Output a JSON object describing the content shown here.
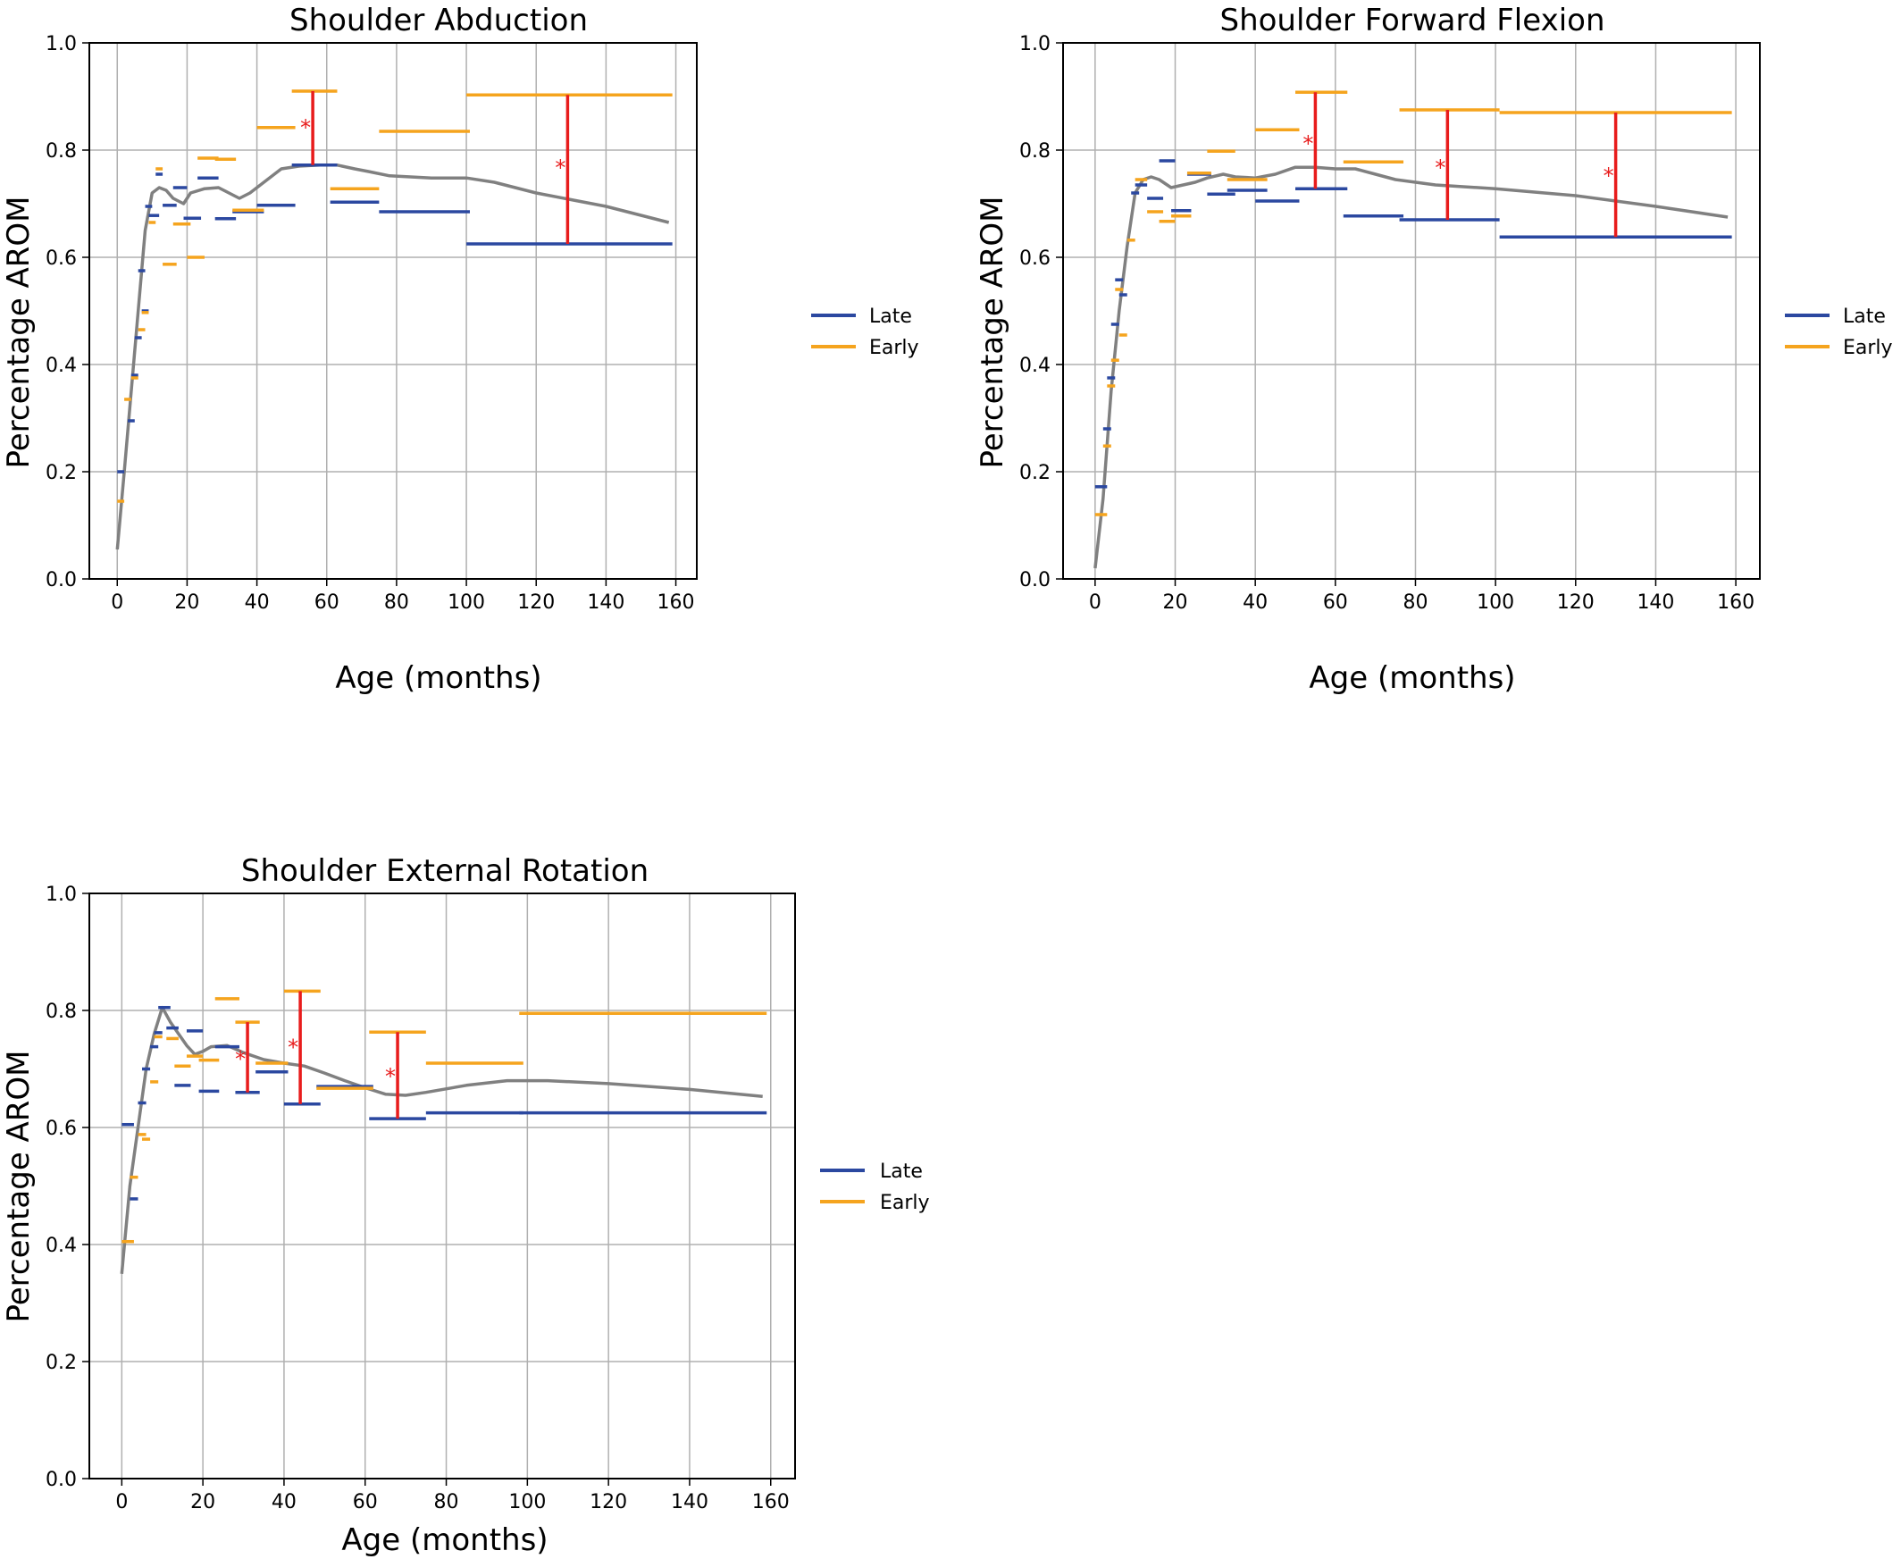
{
  "colors": {
    "late": "#2b48a0",
    "early": "#f5a41e",
    "trend": "#808080",
    "significance": "#e81c1c",
    "grid": "#b0b0b0"
  },
  "legend": {
    "late": "Late",
    "early": "Early"
  },
  "chart_data": [
    {
      "type": "line",
      "title": "Shoulder Abduction",
      "xlabel": "Age (months)",
      "ylabel": "Percentage AROM",
      "xlim": [
        -8,
        166
      ],
      "ylim": [
        0,
        1.0
      ],
      "xticks": [
        0,
        20,
        40,
        60,
        80,
        100,
        120,
        140,
        160
      ],
      "yticks": [
        0.0,
        0.2,
        0.4,
        0.6,
        0.8,
        1.0
      ],
      "grid": true,
      "legend_placement": "right",
      "trend": [
        [
          0,
          0.055
        ],
        [
          2,
          0.2
        ],
        [
          4,
          0.35
        ],
        [
          6,
          0.5
        ],
        [
          8,
          0.65
        ],
        [
          10,
          0.72
        ],
        [
          12,
          0.73
        ],
        [
          14,
          0.725
        ],
        [
          16,
          0.71
        ],
        [
          19,
          0.7
        ],
        [
          21,
          0.72
        ],
        [
          25,
          0.728
        ],
        [
          29,
          0.73
        ],
        [
          32,
          0.72
        ],
        [
          35,
          0.71
        ],
        [
          38,
          0.72
        ],
        [
          42,
          0.74
        ],
        [
          47,
          0.765
        ],
        [
          52,
          0.77
        ],
        [
          58,
          0.772
        ],
        [
          63,
          0.772
        ],
        [
          68,
          0.765
        ],
        [
          72,
          0.76
        ],
        [
          78,
          0.752
        ],
        [
          90,
          0.748
        ],
        [
          100,
          0.748
        ],
        [
          108,
          0.74
        ],
        [
          120,
          0.72
        ],
        [
          140,
          0.695
        ],
        [
          158,
          0.665
        ]
      ],
      "late": [
        [
          0,
          2,
          0.2
        ],
        [
          3,
          5,
          0.295
        ],
        [
          4,
          6,
          0.38
        ],
        [
          5,
          7,
          0.45
        ],
        [
          6,
          8,
          0.575
        ],
        [
          7,
          9,
          0.5
        ],
        [
          8,
          10,
          0.695
        ],
        [
          9,
          12,
          0.678
        ],
        [
          11,
          13,
          0.755
        ],
        [
          13,
          17,
          0.697
        ],
        [
          16,
          20,
          0.73
        ],
        [
          19,
          24,
          0.673
        ],
        [
          23,
          29,
          0.748
        ],
        [
          28,
          34,
          0.672
        ],
        [
          33,
          42,
          0.685
        ],
        [
          40,
          51,
          0.697
        ],
        [
          50,
          63,
          0.772
        ],
        [
          61,
          75,
          0.703
        ],
        [
          75,
          101,
          0.685
        ],
        [
          100,
          159,
          0.625
        ]
      ],
      "early": [
        [
          0,
          2,
          0.145
        ],
        [
          2,
          4,
          0.335
        ],
        [
          4,
          6,
          0.375
        ],
        [
          6,
          8,
          0.465
        ],
        [
          7,
          9,
          0.497
        ],
        [
          9,
          11,
          0.665
        ],
        [
          11,
          13,
          0.765
        ],
        [
          13,
          17,
          0.587
        ],
        [
          16,
          21,
          0.662
        ],
        [
          20,
          25,
          0.6
        ],
        [
          23,
          29,
          0.785
        ],
        [
          28,
          34,
          0.783
        ],
        [
          33,
          42,
          0.688
        ],
        [
          40,
          51,
          0.842
        ],
        [
          50,
          63,
          0.91
        ],
        [
          61,
          75,
          0.728
        ],
        [
          75,
          101,
          0.835
        ],
        [
          100,
          159,
          0.903
        ]
      ],
      "significance": [
        {
          "x": 56,
          "y1": 0.772,
          "y2": 0.91,
          "star_y": 0.845,
          "star": "*"
        },
        {
          "x": 129,
          "y1": 0.625,
          "y2": 0.903,
          "star_y": 0.77,
          "star": "*"
        }
      ]
    },
    {
      "type": "line",
      "title": "Shoulder Forward Flexion",
      "xlabel": "Age (months)",
      "ylabel": "Percentage AROM",
      "xlim": [
        -8,
        166
      ],
      "ylim": [
        0,
        1.0
      ],
      "xticks": [
        0,
        20,
        40,
        60,
        80,
        100,
        120,
        140,
        160
      ],
      "yticks": [
        0.0,
        0.2,
        0.4,
        0.6,
        0.8,
        1.0
      ],
      "grid": true,
      "legend_placement": "right",
      "trend": [
        [
          0,
          0.02
        ],
        [
          2,
          0.15
        ],
        [
          4,
          0.35
        ],
        [
          6,
          0.5
        ],
        [
          8,
          0.62
        ],
        [
          10,
          0.72
        ],
        [
          12,
          0.745
        ],
        [
          14,
          0.75
        ],
        [
          16,
          0.745
        ],
        [
          19,
          0.73
        ],
        [
          22,
          0.735
        ],
        [
          25,
          0.74
        ],
        [
          28,
          0.748
        ],
        [
          32,
          0.755
        ],
        [
          35,
          0.75
        ],
        [
          40,
          0.748
        ],
        [
          45,
          0.755
        ],
        [
          50,
          0.768
        ],
        [
          55,
          0.768
        ],
        [
          60,
          0.765
        ],
        [
          65,
          0.765
        ],
        [
          70,
          0.755
        ],
        [
          75,
          0.745
        ],
        [
          85,
          0.735
        ],
        [
          100,
          0.728
        ],
        [
          120,
          0.715
        ],
        [
          140,
          0.695
        ],
        [
          158,
          0.675
        ]
      ],
      "late": [
        [
          0,
          3,
          0.172
        ],
        [
          2,
          4,
          0.28
        ],
        [
          3,
          5,
          0.375
        ],
        [
          4,
          6,
          0.475
        ],
        [
          5,
          7,
          0.558
        ],
        [
          6,
          8,
          0.53
        ],
        [
          9,
          11,
          0.72
        ],
        [
          10,
          13,
          0.735
        ],
        [
          13,
          17,
          0.71
        ],
        [
          16,
          20,
          0.78
        ],
        [
          19,
          24,
          0.687
        ],
        [
          23,
          29,
          0.755
        ],
        [
          28,
          35,
          0.718
        ],
        [
          33,
          43,
          0.725
        ],
        [
          40,
          51,
          0.705
        ],
        [
          50,
          63,
          0.728
        ],
        [
          62,
          77,
          0.677
        ],
        [
          76,
          101,
          0.67
        ],
        [
          101,
          159,
          0.638
        ]
      ],
      "early": [
        [
          0,
          3,
          0.12
        ],
        [
          2,
          4,
          0.248
        ],
        [
          3,
          5,
          0.36
        ],
        [
          4,
          6,
          0.408
        ],
        [
          5,
          7,
          0.54
        ],
        [
          6,
          8,
          0.455
        ],
        [
          8,
          10,
          0.632
        ],
        [
          10,
          13,
          0.745
        ],
        [
          13,
          17,
          0.685
        ],
        [
          16,
          20,
          0.667
        ],
        [
          19,
          24,
          0.677
        ],
        [
          23,
          29,
          0.757
        ],
        [
          28,
          35,
          0.798
        ],
        [
          33,
          43,
          0.745
        ],
        [
          40,
          51,
          0.838
        ],
        [
          50,
          63,
          0.908
        ],
        [
          62,
          77,
          0.778
        ],
        [
          76,
          101,
          0.875
        ],
        [
          101,
          159,
          0.87
        ]
      ],
      "significance": [
        {
          "x": 55,
          "y1": 0.728,
          "y2": 0.908,
          "star_y": 0.815,
          "star": "*"
        },
        {
          "x": 88,
          "y1": 0.67,
          "y2": 0.875,
          "star_y": 0.77,
          "star": "*"
        },
        {
          "x": 130,
          "y1": 0.638,
          "y2": 0.87,
          "star_y": 0.755,
          "star": "*"
        }
      ]
    },
    {
      "type": "line",
      "title": "Shoulder External Rotation",
      "xlabel": "Age (months)",
      "ylabel": "Percentage AROM",
      "xlim": [
        -8,
        166
      ],
      "ylim": [
        0,
        1.0
      ],
      "xticks": [
        0,
        20,
        40,
        60,
        80,
        100,
        120,
        140,
        160
      ],
      "yticks": [
        0.0,
        0.2,
        0.4,
        0.6,
        0.8,
        1.0
      ],
      "grid": true,
      "legend_placement": "right",
      "trend": [
        [
          0,
          0.35
        ],
        [
          2,
          0.5
        ],
        [
          4,
          0.6
        ],
        [
          6,
          0.7
        ],
        [
          8,
          0.76
        ],
        [
          10,
          0.805
        ],
        [
          12,
          0.78
        ],
        [
          14,
          0.76
        ],
        [
          16,
          0.74
        ],
        [
          18,
          0.725
        ],
        [
          20,
          0.73
        ],
        [
          22,
          0.738
        ],
        [
          26,
          0.74
        ],
        [
          30,
          0.728
        ],
        [
          35,
          0.716
        ],
        [
          40,
          0.71
        ],
        [
          45,
          0.705
        ],
        [
          50,
          0.693
        ],
        [
          55,
          0.68
        ],
        [
          60,
          0.668
        ],
        [
          65,
          0.657
        ],
        [
          70,
          0.655
        ],
        [
          75,
          0.66
        ],
        [
          85,
          0.672
        ],
        [
          95,
          0.68
        ],
        [
          105,
          0.68
        ],
        [
          120,
          0.675
        ],
        [
          140,
          0.665
        ],
        [
          158,
          0.653
        ]
      ],
      "late": [
        [
          0,
          3,
          0.605
        ],
        [
          2,
          4,
          0.478
        ],
        [
          4,
          6,
          0.642
        ],
        [
          5,
          7,
          0.7
        ],
        [
          7,
          9,
          0.738
        ],
        [
          8,
          10,
          0.762
        ],
        [
          9,
          12,
          0.805
        ],
        [
          11,
          14,
          0.77
        ],
        [
          13,
          17,
          0.672
        ],
        [
          16,
          20,
          0.765
        ],
        [
          19,
          24,
          0.662
        ],
        [
          23,
          29,
          0.738
        ],
        [
          28,
          34,
          0.66
        ],
        [
          33,
          41,
          0.695
        ],
        [
          40,
          49,
          0.64
        ],
        [
          48,
          62,
          0.67
        ],
        [
          61,
          75,
          0.615
        ],
        [
          75,
          99,
          0.625
        ],
        [
          98,
          159,
          0.625
        ]
      ],
      "early": [
        [
          0,
          3,
          0.405
        ],
        [
          2,
          4,
          0.515
        ],
        [
          4,
          6,
          0.588
        ],
        [
          5,
          7,
          0.58
        ],
        [
          7,
          9,
          0.678
        ],
        [
          8,
          10,
          0.755
        ],
        [
          11,
          14,
          0.752
        ],
        [
          13,
          17,
          0.705
        ],
        [
          16,
          20,
          0.722
        ],
        [
          19,
          24,
          0.715
        ],
        [
          23,
          29,
          0.82
        ],
        [
          28,
          34,
          0.78
        ],
        [
          33,
          41,
          0.71
        ],
        [
          40,
          49,
          0.833
        ],
        [
          48,
          62,
          0.667
        ],
        [
          61,
          75,
          0.763
        ],
        [
          75,
          99,
          0.71
        ],
        [
          98,
          159,
          0.795
        ]
      ],
      "significance": [
        {
          "x": 31,
          "y1": 0.66,
          "y2": 0.78,
          "star_y": 0.72,
          "star": "*"
        },
        {
          "x": 44,
          "y1": 0.64,
          "y2": 0.833,
          "star_y": 0.74,
          "star": "*"
        },
        {
          "x": 68,
          "y1": 0.615,
          "y2": 0.763,
          "star_y": 0.69,
          "star": "*"
        }
      ]
    }
  ]
}
